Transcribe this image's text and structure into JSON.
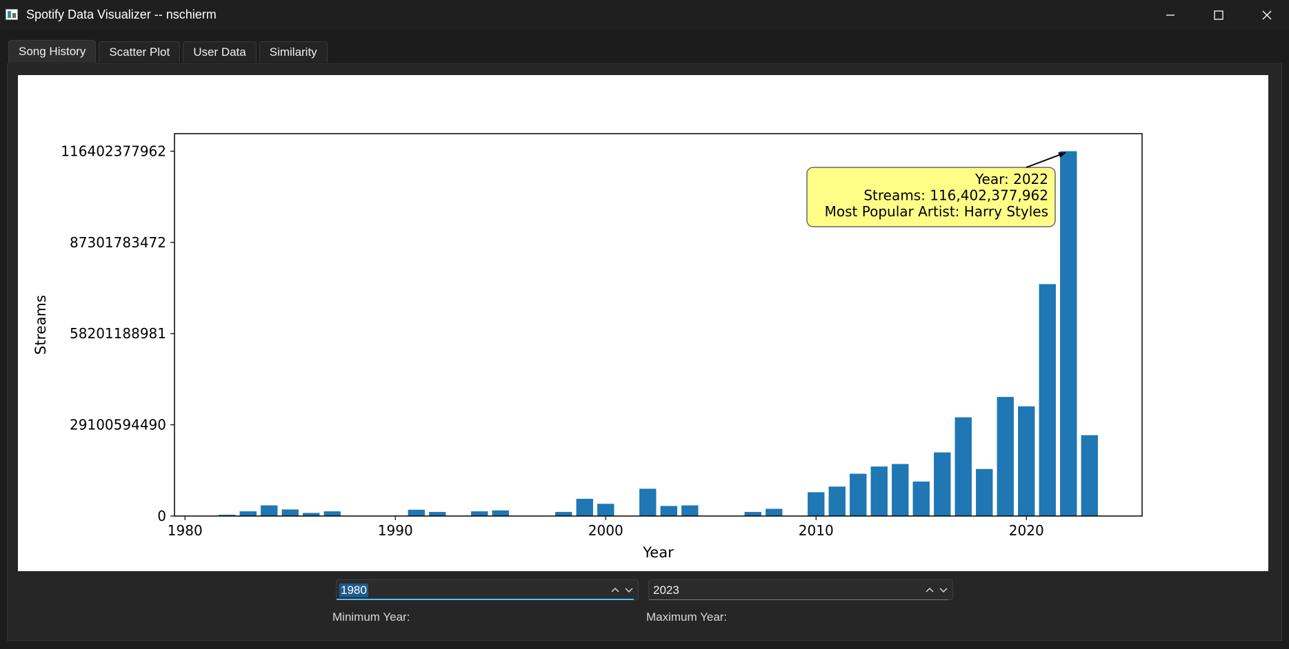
{
  "window": {
    "title": "Spotify Data Visualizer -- nschierm",
    "icons": [
      "app-icon",
      "minimize-icon",
      "maximize-icon",
      "close-icon"
    ]
  },
  "tabs": [
    {
      "label": "Song History",
      "active": true
    },
    {
      "label": "Scatter Plot",
      "active": false
    },
    {
      "label": "User Data",
      "active": false
    },
    {
      "label": "Similarity",
      "active": false
    }
  ],
  "controls": {
    "min_year_value": "1980",
    "max_year_value": "2023",
    "min_year_label": "Minimum Year:",
    "max_year_label": "Maximum Year:"
  },
  "colors": {
    "bar": "#1f77b4",
    "annotation_bg": "#ffff88",
    "accent": "#4cc2ff"
  },
  "chart_data": {
    "type": "bar",
    "xlabel": "Year",
    "ylabel": "Streams",
    "xticks": [
      1980,
      1990,
      2000,
      2010,
      2020
    ],
    "yticks": [
      0,
      29100594490,
      58201188981,
      87301783472,
      116402377962
    ],
    "ytick_labels": [
      "0",
      "29100594490",
      "58201188981",
      "87301783472",
      "116402377962"
    ],
    "xlim": [
      1979.5,
      2025.5
    ],
    "ylim": [
      0,
      122000000000
    ],
    "x": [
      1981,
      1982,
      1983,
      1984,
      1985,
      1986,
      1987,
      1988,
      1989,
      1990,
      1991,
      1992,
      1993,
      1994,
      1995,
      1996,
      1997,
      1998,
      1999,
      2000,
      2001,
      2002,
      2003,
      2004,
      2005,
      2006,
      2007,
      2008,
      2009,
      2010,
      2011,
      2012,
      2013,
      2014,
      2015,
      2016,
      2017,
      2018,
      2019,
      2020,
      2021,
      2022,
      2023
    ],
    "values": [
      0,
      400000000,
      1500000000,
      3400000000,
      2100000000,
      1000000000,
      1500000000,
      0,
      0,
      0,
      2000000000,
      1300000000,
      0,
      1500000000,
      1800000000,
      0,
      0,
      1300000000,
      5500000000,
      3900000000,
      0,
      8700000000,
      3200000000,
      3400000000,
      0,
      0,
      1300000000,
      2300000000,
      0,
      7600000000,
      9400000000,
      13500000000,
      15800000000,
      16600000000,
      11000000000,
      20300000000,
      31500000000,
      15000000000,
      38000000000,
      35000000000,
      74000000000,
      116402377962,
      25800000000
    ],
    "annotation": {
      "x": 2022,
      "lines": [
        "Year: 2022",
        "Streams: 116,402,377,962",
        "Most Popular Artist: Harry Styles"
      ]
    }
  }
}
